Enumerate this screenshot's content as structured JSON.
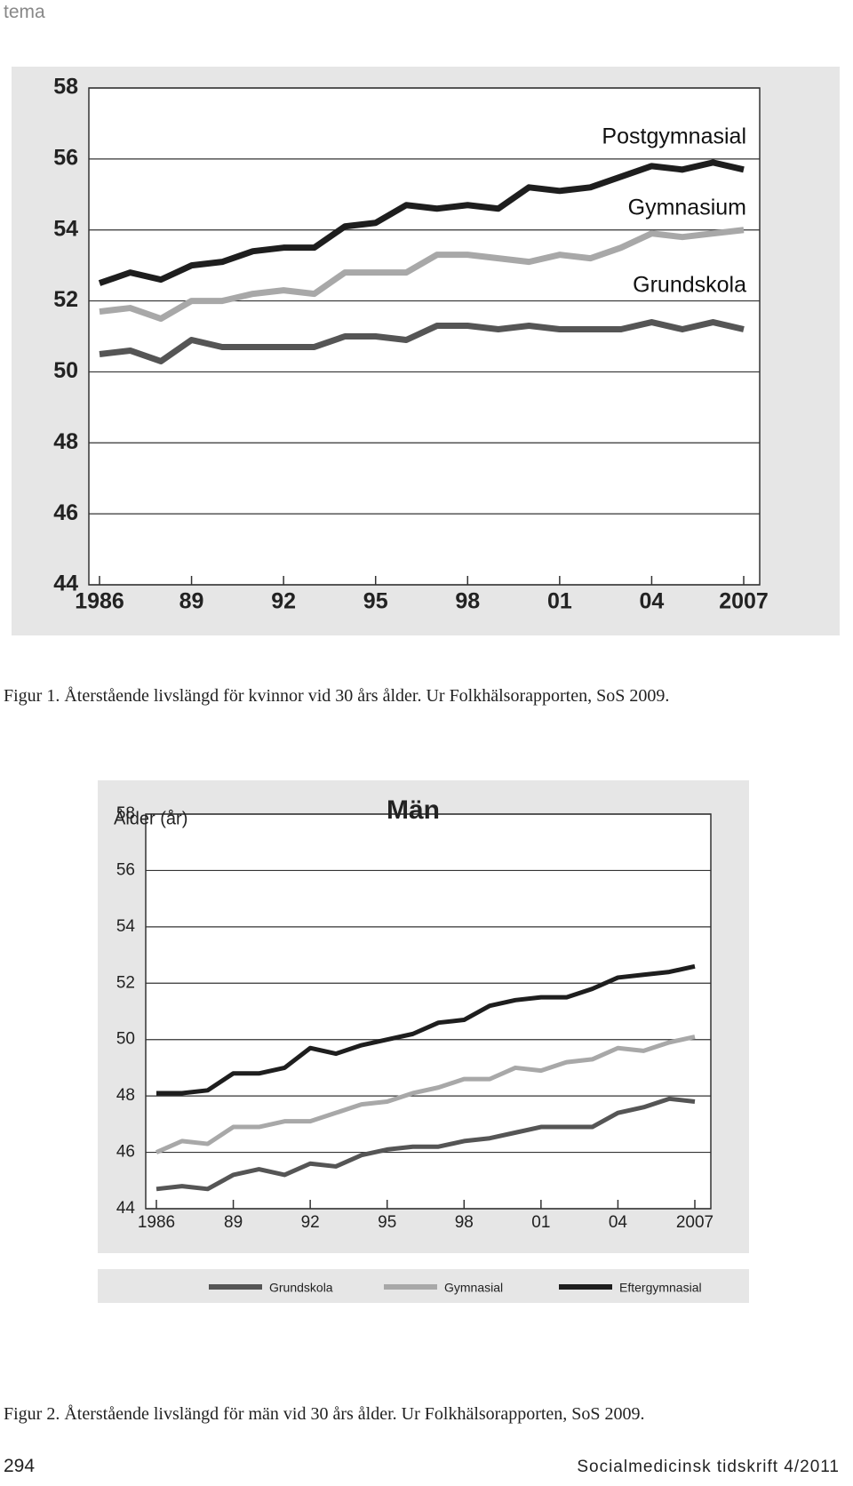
{
  "header": {
    "section": "tema"
  },
  "chart_data": [
    {
      "type": "line",
      "x": [
        1986,
        1987,
        1988,
        1989,
        1990,
        1991,
        1992,
        1993,
        1994,
        1995,
        1996,
        1997,
        1998,
        1999,
        2000,
        2001,
        2002,
        2003,
        2004,
        2005,
        2006,
        2007
      ],
      "xlim": [
        1986,
        2007
      ],
      "xticks": [
        1986,
        {
          "value": 1989,
          "label": "89"
        },
        {
          "value": 1992,
          "label": "92"
        },
        {
          "value": 1995,
          "label": "95"
        },
        {
          "value": 1998,
          "label": "98"
        },
        {
          "value": 2001,
          "label": "01"
        },
        {
          "value": 2004,
          "label": "04"
        },
        2007
      ],
      "ylim": [
        44,
        58
      ],
      "yticks": [
        44,
        46,
        48,
        50,
        52,
        54,
        56,
        58
      ],
      "grid": true,
      "legend": "inline",
      "series": [
        {
          "name": "Postgymnasial",
          "color": "#1e1e1e",
          "values": [
            52.5,
            52.8,
            52.6,
            53.0,
            53.1,
            53.4,
            53.5,
            53.5,
            54.1,
            54.2,
            54.7,
            54.6,
            54.7,
            54.6,
            55.2,
            55.1,
            55.2,
            55.5,
            55.8,
            55.7,
            55.9,
            55.7
          ]
        },
        {
          "name": "Gymnasium",
          "color": "#a8a8a8",
          "values": [
            51.7,
            51.8,
            51.5,
            52.0,
            52.0,
            52.2,
            52.3,
            52.2,
            52.8,
            52.8,
            52.8,
            53.3,
            53.3,
            53.2,
            53.1,
            53.3,
            53.2,
            53.5,
            53.9,
            53.8,
            53.9,
            54.0
          ]
        },
        {
          "name": "Grundskola",
          "color": "#555555",
          "values": [
            50.5,
            50.6,
            50.3,
            50.9,
            50.7,
            50.7,
            50.7,
            50.7,
            51.0,
            51.0,
            50.9,
            51.3,
            51.3,
            51.2,
            51.3,
            51.2,
            51.2,
            51.2,
            51.4,
            51.2,
            51.4,
            51.2
          ]
        }
      ]
    },
    {
      "type": "line",
      "title": "Män",
      "y_label": "Ålder (år)",
      "x": [
        1986,
        1987,
        1988,
        1989,
        1990,
        1991,
        1992,
        1993,
        1994,
        1995,
        1996,
        1997,
        1998,
        1999,
        2000,
        2001,
        2002,
        2003,
        2004,
        2005,
        2006,
        2007
      ],
      "xlim": [
        1986,
        2007
      ],
      "xticks": [
        1986,
        {
          "value": 1989,
          "label": "89"
        },
        {
          "value": 1992,
          "label": "92"
        },
        {
          "value": 1995,
          "label": "95"
        },
        {
          "value": 1998,
          "label": "98"
        },
        {
          "value": 2001,
          "label": "01"
        },
        {
          "value": 2004,
          "label": "04"
        },
        2007
      ],
      "ylim": [
        44,
        58
      ],
      "yticks": [
        44,
        46,
        48,
        50,
        52,
        54,
        56,
        58
      ],
      "grid": true,
      "legend": "bottom",
      "series": [
        {
          "name": "Grundskola",
          "color": "#555555",
          "values": [
            44.7,
            44.8,
            44.7,
            45.2,
            45.4,
            45.2,
            45.6,
            45.5,
            45.9,
            46.1,
            46.2,
            46.2,
            46.4,
            46.5,
            46.7,
            46.9,
            46.9,
            46.9,
            47.4,
            47.6,
            47.9,
            47.8
          ]
        },
        {
          "name": "Gymnasial",
          "color": "#a8a8a8",
          "values": [
            46.0,
            46.4,
            46.3,
            46.9,
            46.9,
            47.1,
            47.1,
            47.4,
            47.7,
            47.8,
            48.1,
            48.3,
            48.6,
            48.6,
            49.0,
            48.9,
            49.2,
            49.3,
            49.7,
            49.6,
            49.9,
            50.1
          ]
        },
        {
          "name": "Eftergymnasial",
          "color": "#1e1e1e",
          "values": [
            48.1,
            48.1,
            48.2,
            48.8,
            48.8,
            49.0,
            49.7,
            49.5,
            49.8,
            50.0,
            50.2,
            50.6,
            50.7,
            51.2,
            51.4,
            51.5,
            51.5,
            51.8,
            52.2,
            52.3,
            52.4,
            52.6
          ]
        }
      ]
    }
  ],
  "captions": [
    "Figur 1. Återstående livslängd för kvinnor vid 30 års ålder. Ur Folkhälsorapporten, SoS 2009.",
    "Figur 2. Återstående livslängd för män vid 30 års ålder. Ur Folkhälsorapporten, SoS 2009."
  ],
  "footer": {
    "page": "294",
    "journal": "Socialmedicinsk tidskrift 4/2011"
  }
}
